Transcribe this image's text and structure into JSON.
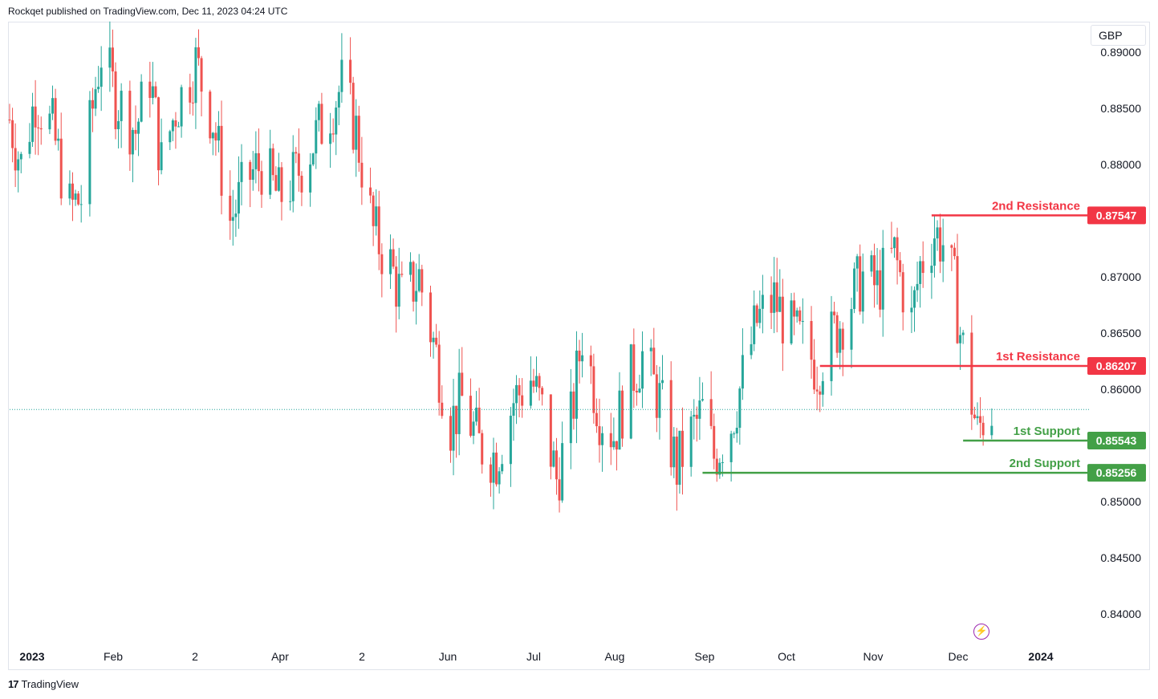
{
  "header": {
    "published_by": "Rockqet published on TradingView.com, Dec 11, 2023 04:24 UTC"
  },
  "currency": "GBP",
  "footer": {
    "brand": "TradingView",
    "logo": "tradingview-logo-icon"
  },
  "colors": {
    "up": "#26a69a",
    "down": "#ef5350",
    "resistance": "#f23645",
    "support": "#43a047",
    "last_price_line": "#26a69a"
  },
  "chart_data": {
    "type": "candlestick",
    "symbol_currency": "GBP",
    "y_ticks": [
      "0.89000",
      "0.88500",
      "0.88000",
      "0.87000",
      "0.86500",
      "0.86000",
      "0.85000",
      "0.84500",
      "0.84000"
    ],
    "y_tick_values": [
      0.89,
      0.885,
      0.88,
      0.87,
      0.865,
      0.86,
      0.85,
      0.845,
      0.84
    ],
    "x_ticks": [
      "2023",
      "Feb",
      "2",
      "Apr",
      "2",
      "Jun",
      "Jul",
      "Aug",
      "Sep",
      "Oct",
      "Nov",
      "Dec",
      "2024"
    ],
    "x_tick_bold": [
      true,
      false,
      false,
      false,
      false,
      false,
      false,
      false,
      false,
      false,
      false,
      false,
      true
    ],
    "x_range": [
      "2023-01-02",
      "2024-01-12"
    ],
    "y_range": [
      0.8375,
      0.8925
    ],
    "last_price": 0.8582,
    "levels": [
      {
        "name": "2nd Resistance",
        "label": "0.87547",
        "value": 0.87547,
        "kind": "resistance",
        "start": "2023-11-20"
      },
      {
        "name": "1st Resistance",
        "label": "0.86207",
        "value": 0.86207,
        "kind": "resistance",
        "start": "2023-10-12"
      },
      {
        "name": "1st Support",
        "label": "0.85543",
        "value": 0.85543,
        "kind": "support",
        "start": "2023-12-01"
      },
      {
        "name": "2nd Support",
        "label": "0.85256",
        "value": 0.85256,
        "kind": "support",
        "start": "2023-09-01"
      }
    ],
    "close_path": [
      [
        "2023-01-02",
        0.884
      ],
      [
        "2023-01-06",
        0.88
      ],
      [
        "2023-01-11",
        0.886
      ],
      [
        "2023-01-17",
        0.883
      ],
      [
        "2023-01-23",
        0.876
      ],
      [
        "2023-01-27",
        0.877
      ],
      [
        "2023-02-01",
        0.887
      ],
      [
        "2023-02-03",
        0.89
      ],
      [
        "2023-02-08",
        0.886
      ],
      [
        "2023-02-15",
        0.883
      ],
      [
        "2023-02-20",
        0.888
      ],
      [
        "2023-02-24",
        0.88
      ],
      [
        "2023-03-01",
        0.885
      ],
      [
        "2023-03-08",
        0.889
      ],
      [
        "2023-03-14",
        0.884
      ],
      [
        "2023-03-20",
        0.875
      ],
      [
        "2023-03-27",
        0.879
      ],
      [
        "2023-03-31",
        0.88
      ],
      [
        "2023-04-06",
        0.877
      ],
      [
        "2023-04-12",
        0.879
      ],
      [
        "2023-04-18",
        0.882
      ],
      [
        "2023-04-24",
        0.885
      ],
      [
        "2023-04-28",
        0.887
      ],
      [
        "2023-05-03",
        0.883
      ],
      [
        "2023-05-09",
        0.874
      ],
      [
        "2023-05-15",
        0.871
      ],
      [
        "2023-05-19",
        0.868
      ],
      [
        "2023-05-25",
        0.87
      ],
      [
        "2023-05-31",
        0.863
      ],
      [
        "2023-06-05",
        0.857
      ],
      [
        "2023-06-09",
        0.859
      ],
      [
        "2023-06-15",
        0.855
      ],
      [
        "2023-06-21",
        0.854
      ],
      [
        "2023-06-27",
        0.859
      ],
      [
        "2023-07-03",
        0.861
      ],
      [
        "2023-07-07",
        0.858
      ],
      [
        "2023-07-12",
        0.852
      ],
      [
        "2023-07-17",
        0.857
      ],
      [
        "2023-07-21",
        0.865
      ],
      [
        "2023-07-27",
        0.858
      ],
      [
        "2023-08-01",
        0.856
      ],
      [
        "2023-08-07",
        0.861
      ],
      [
        "2023-08-11",
        0.863
      ],
      [
        "2023-08-17",
        0.859
      ],
      [
        "2023-08-23",
        0.853
      ],
      [
        "2023-08-28",
        0.856
      ],
      [
        "2023-09-01",
        0.858
      ],
      [
        "2023-09-05",
        0.854
      ],
      [
        "2023-09-11",
        0.857
      ],
      [
        "2023-09-15",
        0.861
      ],
      [
        "2023-09-20",
        0.866
      ],
      [
        "2023-09-26",
        0.868
      ],
      [
        "2023-10-02",
        0.865
      ],
      [
        "2023-10-06",
        0.864
      ],
      [
        "2023-10-11",
        0.862
      ],
      [
        "2023-10-17",
        0.865
      ],
      [
        "2023-10-23",
        0.868
      ],
      [
        "2023-10-27",
        0.87
      ],
      [
        "2023-11-01",
        0.869
      ],
      [
        "2023-11-07",
        0.872
      ],
      [
        "2023-11-13",
        0.866
      ],
      [
        "2023-11-16",
        0.871
      ],
      [
        "2023-11-21",
        0.874
      ],
      [
        "2023-11-24",
        0.873
      ],
      [
        "2023-11-28",
        0.869
      ],
      [
        "2023-11-30",
        0.865
      ],
      [
        "2023-12-04",
        0.859
      ],
      [
        "2023-12-06",
        0.856
      ],
      [
        "2023-12-08",
        0.8575
      ],
      [
        "2023-12-11",
        0.8582
      ]
    ]
  }
}
